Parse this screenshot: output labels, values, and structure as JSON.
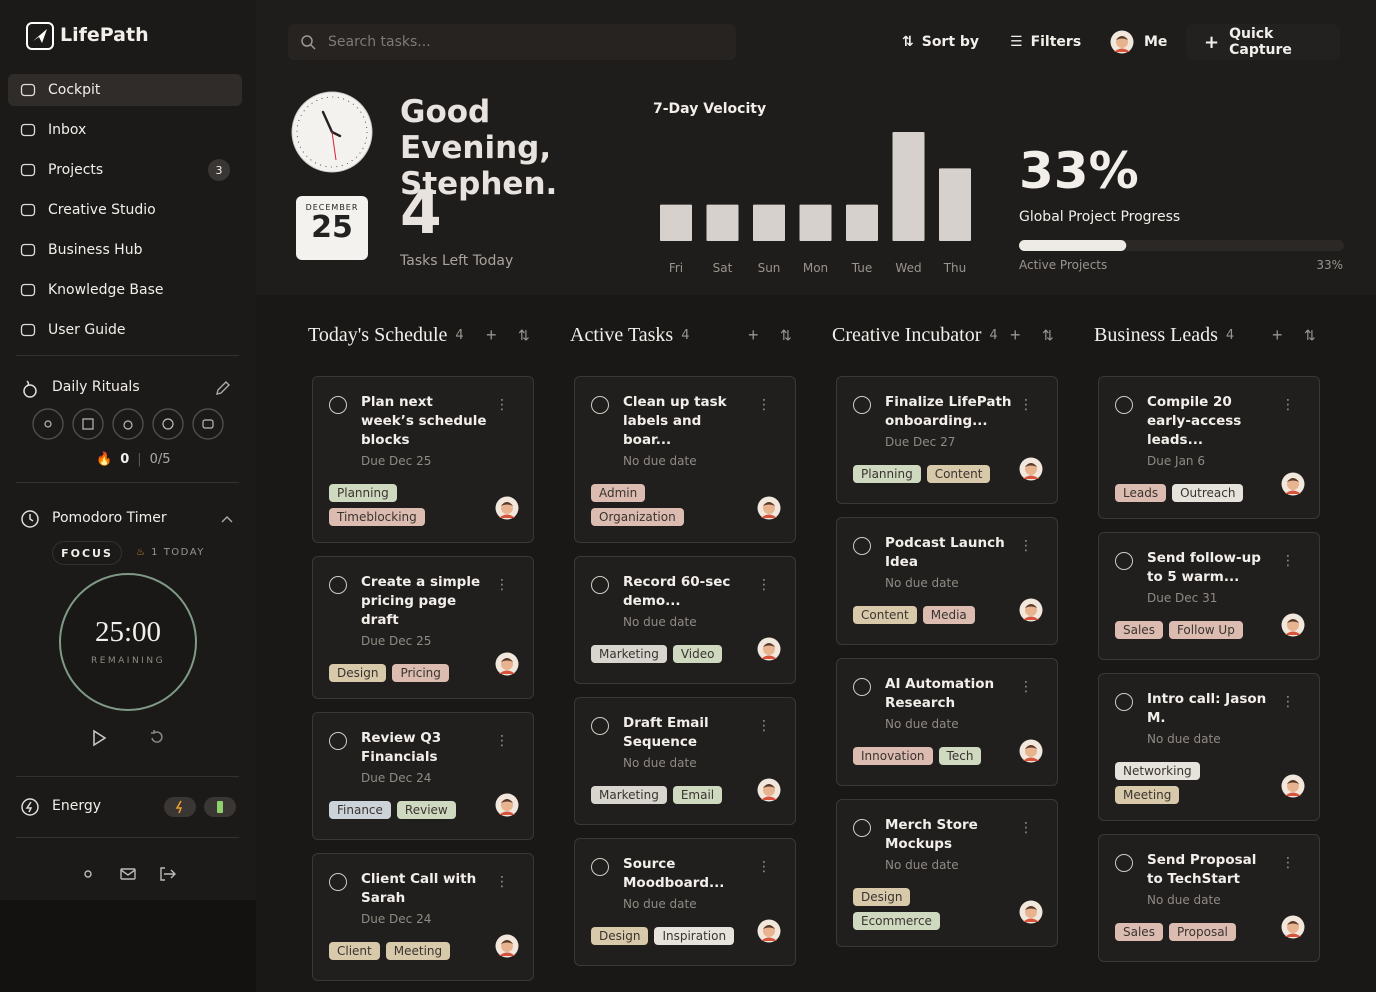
{
  "sidebar": {
    "brand": "LifePath",
    "nav": [
      {
        "label": "Cockpit"
      },
      {
        "label": "Inbox"
      },
      {
        "label": "Projects",
        "badge": "3"
      },
      {
        "label": "Creative Studio"
      },
      {
        "label": "Business Hub"
      },
      {
        "label": "Knowledge Base"
      },
      {
        "label": "User Guide"
      }
    ],
    "rituals": {
      "title": "Daily Rituals",
      "streak": "0",
      "done": "0/5"
    },
    "pomodoro": {
      "title": "Pomodoro Timer",
      "mode": "FOCUS",
      "today": "1 TODAY",
      "time": "25:00",
      "caption": "REMAINING"
    },
    "energy": {
      "title": "Energy"
    }
  },
  "header": {
    "search_placeholder": "Search tasks...",
    "sort": "Sort by",
    "filters": "Filters",
    "user": "Me",
    "capture": "Quick Capture"
  },
  "hero": {
    "greeting": "Good Evening, Stephen.",
    "calendar_month": "DECEMBER",
    "calendar_day": "25",
    "tasks_left": "4",
    "tasks_caption": "Tasks Left Today"
  },
  "velocity": {
    "type": "bar",
    "title": "7-Day Velocity",
    "categories": [
      "Fri",
      "Sat",
      "Sun",
      "Mon",
      "Tue",
      "Wed",
      "Thu"
    ],
    "values": [
      1,
      1,
      1,
      1,
      1,
      3,
      2
    ],
    "ylim": [
      0,
      3
    ],
    "color": "#d6d1cc"
  },
  "progress": {
    "value": 33,
    "label": "33%",
    "title": "Global Project Progress",
    "caption": "Active Projects"
  },
  "columns": [
    {
      "title": "Today's Schedule",
      "count": "4",
      "cards": [
        {
          "title": "Plan next week’s schedule blocks",
          "due": "Due Dec 25",
          "tags": [
            {
              "label": "Planning",
              "color": "#cfd9bf"
            },
            {
              "label": "Timeblocking",
              "color": "#dcbcb0"
            }
          ]
        },
        {
          "title": "Create a simple pricing page draft",
          "due": "Due Dec 25",
          "tags": [
            {
              "label": "Design",
              "color": "#d9c9ab"
            },
            {
              "label": "Pricing",
              "color": "#dcbcb0"
            }
          ]
        },
        {
          "title": "Review Q3 Financials",
          "due": "Due Dec 24",
          "tags": [
            {
              "label": "Finance",
              "color": "#ccd3d9"
            },
            {
              "label": "Review",
              "color": "#cfd9bf"
            }
          ]
        },
        {
          "title": "Client Call with Sarah",
          "due": "Due Dec 24",
          "tags": [
            {
              "label": "Client",
              "color": "#d9c9ab"
            },
            {
              "label": "Meeting",
              "color": "#d9c9ab"
            }
          ]
        }
      ]
    },
    {
      "title": "Active Tasks",
      "count": "4",
      "cards": [
        {
          "title": "Clean up task labels and boar...",
          "due": "No due date",
          "tags": [
            {
              "label": "Admin",
              "color": "#dcbcb0"
            },
            {
              "label": "Organization",
              "color": "#dcbcb0"
            }
          ]
        },
        {
          "title": "Record 60-sec demo...",
          "due": "No due date",
          "tags": [
            {
              "label": "Marketing",
              "color": "#d8d4ce"
            },
            {
              "label": "Video",
              "color": "#cfd9bf"
            }
          ]
        },
        {
          "title": "Draft Email Sequence",
          "due": "No due date",
          "tags": [
            {
              "label": "Marketing",
              "color": "#d8d4ce"
            },
            {
              "label": "Email",
              "color": "#cfd9bf"
            }
          ]
        },
        {
          "title": "Source Moodboard...",
          "due": "No due date",
          "tags": [
            {
              "label": "Design",
              "color": "#d9c9ab"
            },
            {
              "label": "Inspiration",
              "color": "#e6e2dc"
            }
          ]
        }
      ]
    },
    {
      "title": "Creative Incubator",
      "count": "4",
      "cards": [
        {
          "title": "Finalize LifePath onboarding...",
          "due": "Due Dec 27",
          "tags": [
            {
              "label": "Planning",
              "color": "#cfd9bf"
            },
            {
              "label": "Content",
              "color": "#d9c9ab"
            }
          ]
        },
        {
          "title": "Podcast Launch Idea",
          "due": "No due date",
          "tags": [
            {
              "label": "Content",
              "color": "#d9c9ab"
            },
            {
              "label": "Media",
              "color": "#dcbcb0"
            }
          ]
        },
        {
          "title": "AI Automation Research",
          "due": "No due date",
          "tags": [
            {
              "label": "Innovation",
              "color": "#dcbcb0"
            },
            {
              "label": "Tech",
              "color": "#cfd9bf"
            }
          ]
        },
        {
          "title": "Merch Store Mockups",
          "due": "No due date",
          "tags": [
            {
              "label": "Design",
              "color": "#d9c9ab"
            },
            {
              "label": "Ecommerce",
              "color": "#cfd9bf"
            }
          ]
        }
      ]
    },
    {
      "title": "Business Leads",
      "count": "4",
      "cards": [
        {
          "title": "Compile 20 early-access leads...",
          "due": "Due Jan 6",
          "tags": [
            {
              "label": "Leads",
              "color": "#dcbcb0"
            },
            {
              "label": "Outreach",
              "color": "#e6e2dc"
            }
          ]
        },
        {
          "title": "Send follow-up to 5 warm...",
          "due": "Due Dec 31",
          "tags": [
            {
              "label": "Sales",
              "color": "#dcbcb0"
            },
            {
              "label": "Follow Up",
              "color": "#dcbcb0"
            }
          ]
        },
        {
          "title": "Intro call: Jason M.",
          "due": "No due date",
          "tags": [
            {
              "label": "Networking",
              "color": "#e6e2dc"
            },
            {
              "label": "Meeting",
              "color": "#d9c9ab"
            }
          ]
        },
        {
          "title": "Send Proposal to TechStart",
          "due": "No due date",
          "tags": [
            {
              "label": "Sales",
              "color": "#dcbcb0"
            },
            {
              "label": "Proposal",
              "color": "#dcbcb0"
            }
          ]
        }
      ]
    }
  ]
}
